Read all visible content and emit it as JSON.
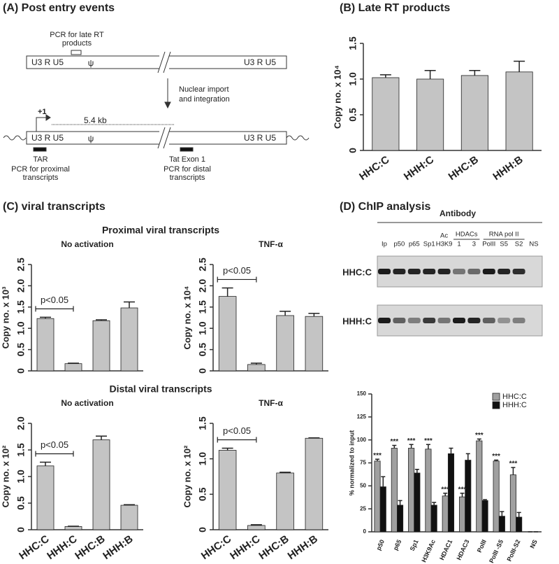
{
  "panel_titles": [
    "(A) Post entry events",
    "(B) Late RT products",
    "(C) viral transcripts",
    "(D) ChIP analysis"
  ],
  "diagram": {
    "late_rt_pcr": [
      "PCR for late RT",
      "products"
    ],
    "ltr_left": "U3 R U5",
    "psi": "ψ",
    "ltr_right": "U3 R U5",
    "step": [
      "Nuclear import",
      "and integration"
    ],
    "tss": "+1",
    "length": "5.4 kb",
    "ltr_left_2": "U3 R U5",
    "psi_2": "ψ",
    "ltr_right_2": "U3 R U5",
    "tar": "TAR",
    "proximal_pcr": [
      "PCR for proximal",
      "transcripts"
    ],
    "tat_exon": "Tat Exon 1",
    "distal_pcr": [
      "PCR for distal",
      "transcripts"
    ]
  },
  "section_titles": [
    "Proximal viral transcripts",
    "Distal viral transcripts"
  ],
  "gel": {
    "title": "Antibody",
    "lanes": [
      "Ip",
      "p50",
      "p65",
      "Sp1",
      "H3K9",
      "1",
      "3",
      "PolII",
      "S5",
      "S2",
      "NS"
    ],
    "ac": "Ac",
    "groups": [
      "HDACs",
      "RNA pol II"
    ],
    "rows": [
      "HHC:C",
      "HHH:C"
    ]
  },
  "chart_data": [
    {
      "type": "bar",
      "ylabel": "Copy no. x 10⁴",
      "categories": [
        "HHC:C",
        "HHH:C",
        "HHC:B",
        "HHH:B"
      ],
      "series": [
        {
          "color": "#c4c4c4",
          "values": [
            1.02,
            1.0,
            1.05,
            1.1
          ],
          "errors": [
            0.04,
            0.12,
            0.07,
            0.15
          ]
        }
      ],
      "ylim": [
        0,
        1.5
      ],
      "yticks": [
        0,
        0.5,
        {
          "value": 1,
          "label": "1.0"
        },
        1.5
      ]
    },
    {
      "type": "bar",
      "title": "No activation",
      "ylabel": "Copy no. x 10³",
      "categories": [
        null,
        null,
        null,
        null
      ],
      "series": [
        {
          "color": "#c4c4c4",
          "values": [
            1.23,
            0.17,
            1.18,
            1.48
          ],
          "errors": [
            0.03,
            0.01,
            0.02,
            0.14
          ]
        }
      ],
      "annotation": "p<0.05",
      "ylim": [
        0,
        2.5
      ],
      "yticks": [
        0,
        0.5,
        {
          "value": 1,
          "label": "1.0"
        },
        1.5,
        {
          "value": 2,
          "label": "2.0"
        },
        2.5
      ]
    },
    {
      "type": "bar",
      "title": "TNF-α",
      "ylabel": "Copy no. x 10⁴",
      "categories": [
        null,
        null,
        null,
        null
      ],
      "series": [
        {
          "color": "#c4c4c4",
          "values": [
            1.75,
            0.15,
            1.3,
            1.28
          ],
          "errors": [
            0.2,
            0.03,
            0.1,
            0.07
          ]
        }
      ],
      "annotation": "p<0.05",
      "ylim": [
        0,
        2.5
      ],
      "yticks": [
        0,
        0.5,
        {
          "value": 1,
          "label": "1.0"
        },
        1.5,
        {
          "value": 2,
          "label": "2.0"
        },
        2.5
      ]
    },
    {
      "type": "bar",
      "title": "No activation",
      "ylabel": "Copy no. x 10²",
      "categories": [
        "HHC:C",
        "HHH:C",
        "HHC:B",
        "HHH:B"
      ],
      "series": [
        {
          "color": "#c4c4c4",
          "values": [
            1.2,
            0.06,
            1.69,
            0.46
          ],
          "errors": [
            0.07,
            0.005,
            0.07,
            0.01
          ]
        }
      ],
      "annotation": "p<0.05",
      "ylim": [
        0,
        2
      ],
      "yticks": [
        0,
        0.5,
        {
          "value": 1,
          "label": "1.0"
        },
        1.5,
        {
          "value": 2,
          "label": "2.0"
        }
      ]
    },
    {
      "type": "bar",
      "title": "TNF-α",
      "ylabel": "Copy no. x 10²",
      "categories": [
        "HHC:C",
        "HHH:C",
        "HHC:B",
        "HHH:B"
      ],
      "series": [
        {
          "color": "#c4c4c4",
          "values": [
            1.12,
            0.06,
            0.8,
            1.29
          ],
          "errors": [
            0.03,
            0.01,
            0.01,
            0.005
          ]
        }
      ],
      "annotation": "p<0.05",
      "ylim": [
        0,
        1.5
      ],
      "yticks": [
        0,
        0.5,
        {
          "value": 1,
          "label": "1.0"
        },
        1.5
      ]
    },
    {
      "type": "bar",
      "ylabel": "% normalized to input",
      "categories": [
        "p50",
        "p65",
        "Sp1",
        "H3K9Ac",
        "HDAC1",
        "HDAC3",
        "PolII",
        "PolII -S5",
        "PolII-S2",
        "NS"
      ],
      "series": [
        {
          "name": "HHC:C",
          "color": "#a0a0a0",
          "values": [
            77,
            91,
            91,
            90,
            39,
            38,
            99,
            77,
            62,
            0
          ],
          "errors": [
            2,
            3,
            4,
            5,
            3,
            4,
            2,
            1,
            8,
            0
          ]
        },
        {
          "name": "HHH:C",
          "color": "#111111",
          "values": [
            49,
            29,
            64,
            29,
            85,
            78,
            34,
            17,
            16,
            0
          ],
          "errors": [
            11,
            5,
            4,
            3,
            6,
            7,
            1,
            5,
            5,
            0
          ]
        }
      ],
      "significance": [
        "***",
        "***",
        "***",
        "***",
        "***",
        "***",
        "***",
        "***",
        "***",
        null
      ],
      "ylim": [
        0,
        150
      ],
      "yticks": [
        0,
        25,
        50,
        75,
        100,
        125,
        150
      ],
      "legend": "top-right"
    }
  ]
}
